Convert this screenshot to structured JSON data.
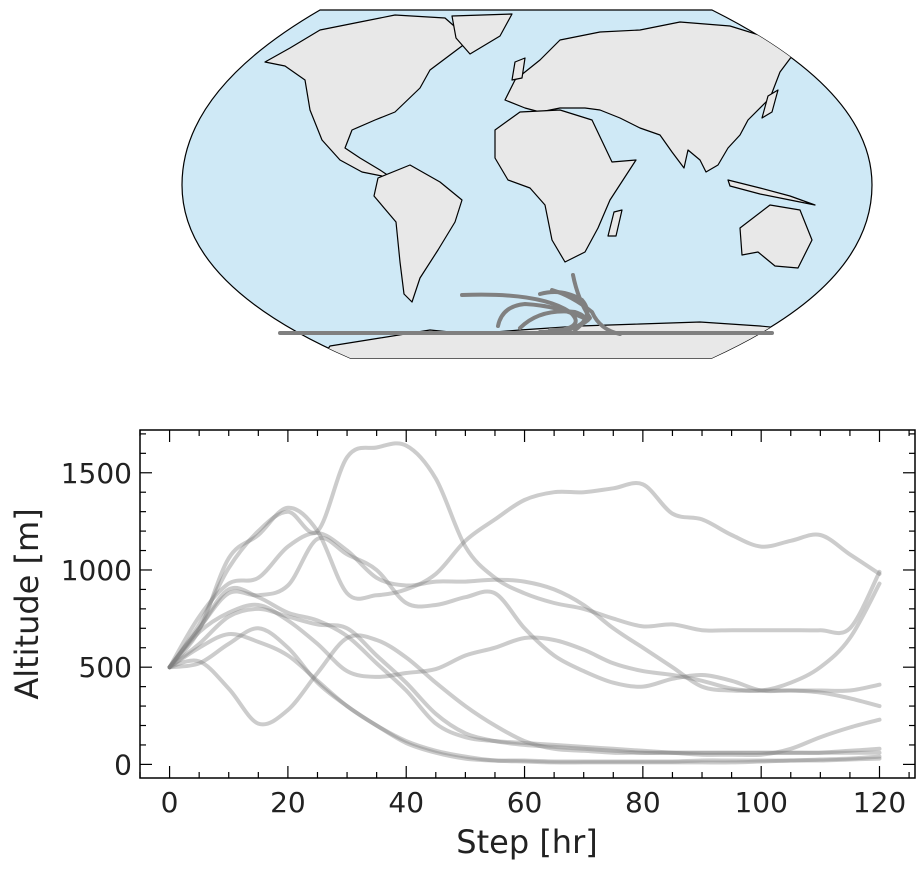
{
  "map": {
    "projection": "robinson",
    "ocean_color": "#cfe9f6",
    "land_color": "#e8e8e8",
    "coast_color": "#000000",
    "track_color": "#808080"
  },
  "chart_data": {
    "type": "line",
    "xlabel": "Step [hr]",
    "ylabel": "Altitude [m]",
    "xlim": [
      -5,
      126
    ],
    "ylim": [
      -70,
      1720
    ],
    "xticks": [
      0,
      20,
      40,
      60,
      80,
      100,
      120
    ],
    "yticks": [
      0,
      500,
      1000,
      1500
    ],
    "xtick_labels": [
      "0",
      "20",
      "40",
      "60",
      "80",
      "100",
      "120"
    ],
    "ytick_labels": [
      "0",
      "500",
      "1000",
      "1500"
    ],
    "line_color": "#808080",
    "line_opacity": 0.4,
    "grid": false,
    "x": [
      0,
      5,
      10,
      15,
      20,
      25,
      30,
      35,
      40,
      45,
      50,
      55,
      60,
      65,
      70,
      75,
      80,
      85,
      90,
      95,
      100,
      105,
      110,
      115,
      120
    ],
    "series": [
      {
        "values": [
          500,
          720,
          1010,
          1200,
          1300,
          1200,
          1580,
          1630,
          1640,
          1470,
          1120,
          960,
          880,
          830,
          800,
          750,
          710,
          720,
          690,
          690,
          690,
          690,
          690,
          700,
          990
        ]
      },
      {
        "values": [
          500,
          690,
          1060,
          1180,
          1320,
          1200,
          880,
          870,
          900,
          980,
          1150,
          1260,
          1360,
          1400,
          1400,
          1420,
          1440,
          1290,
          1260,
          1180,
          1120,
          1150,
          1180,
          1080,
          980
        ]
      },
      {
        "values": [
          500,
          760,
          930,
          960,
          1120,
          1190,
          1100,
          960,
          920,
          940,
          940,
          950,
          940,
          900,
          820,
          700,
          600,
          500,
          400,
          380,
          380,
          380,
          380,
          380,
          410
        ]
      },
      {
        "values": [
          500,
          700,
          880,
          870,
          920,
          1160,
          1080,
          1000,
          830,
          820,
          860,
          880,
          700,
          560,
          480,
          420,
          400,
          440,
          460,
          430,
          380,
          380,
          370,
          340,
          300
        ]
      },
      {
        "values": [
          500,
          700,
          900,
          860,
          780,
          740,
          660,
          520,
          380,
          210,
          140,
          120,
          110,
          100,
          90,
          80,
          70,
          60,
          50,
          50,
          50,
          80,
          140,
          190,
          230
        ]
      },
      {
        "values": [
          500,
          680,
          780,
          820,
          740,
          620,
          480,
          450,
          470,
          490,
          560,
          600,
          650,
          640,
          590,
          520,
          480,
          460,
          430,
          390,
          380,
          420,
          500,
          650,
          930
        ]
      },
      {
        "values": [
          500,
          530,
          390,
          210,
          280,
          470,
          650,
          640,
          550,
          420,
          300,
          200,
          120,
          80,
          70,
          60,
          60,
          60,
          60,
          60,
          60,
          60,
          60,
          60,
          60
        ]
      },
      {
        "values": [
          500,
          620,
          760,
          800,
          760,
          720,
          700,
          560,
          420,
          260,
          160,
          120,
          100,
          90,
          80,
          70,
          60,
          60,
          60,
          60,
          60,
          60,
          60,
          70,
          80
        ]
      },
      {
        "values": [
          500,
          600,
          670,
          630,
          560,
          430,
          300,
          200,
          120,
          70,
          40,
          20,
          15,
          10,
          10,
          10,
          10,
          10,
          10,
          10,
          15,
          20,
          20,
          25,
          30
        ]
      },
      {
        "values": [
          500,
          520,
          620,
          700,
          600,
          420,
          300,
          200,
          110,
          60,
          30,
          20,
          20,
          15,
          15,
          15,
          15,
          15,
          20,
          20,
          20,
          20,
          25,
          30,
          40
        ]
      }
    ]
  }
}
